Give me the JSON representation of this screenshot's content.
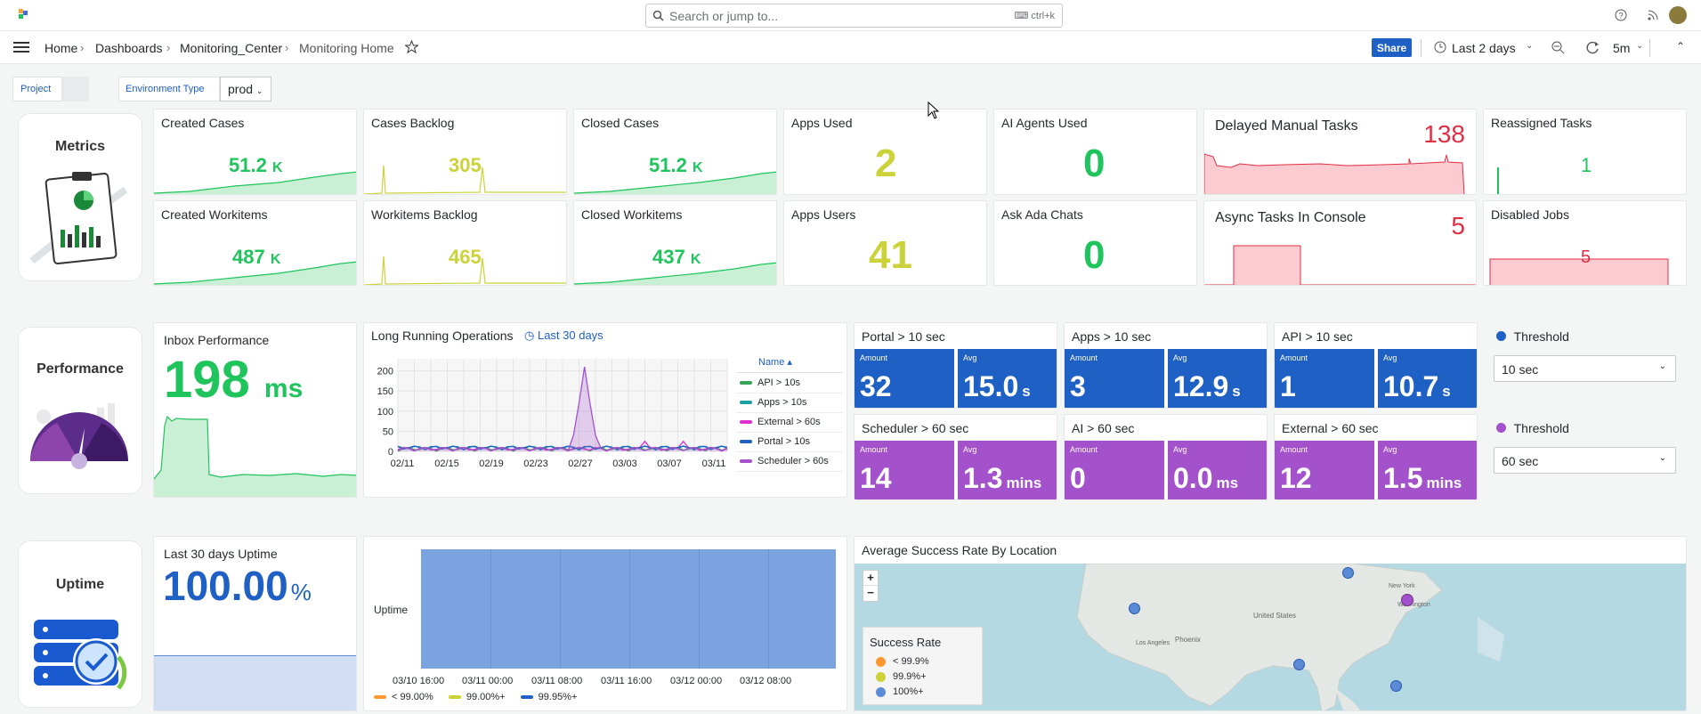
{
  "app": {
    "logo": "grafana-logo",
    "breadcrumb": [
      "Home",
      "Dashboards",
      "Monitoring_Center",
      "Monitoring Home"
    ]
  },
  "search": {
    "placeholder": "Search or jump to...",
    "shortcut": "ctrl+k"
  },
  "toolbar": {
    "share_label": "Share",
    "time_range": "Last 2 days",
    "refresh": "5m"
  },
  "variables": {
    "project_label": "Project",
    "env_label": "Environment Type",
    "env_value": "prod"
  },
  "rows": {
    "metrics": "Metrics",
    "performance": "Performance",
    "uptime": "Uptime"
  },
  "metrics": {
    "created_cases": {
      "title": "Created Cases",
      "value": "51.2",
      "unit": "K"
    },
    "cases_backlog": {
      "title": "Cases Backlog",
      "value": "305"
    },
    "closed_cases": {
      "title": "Closed Cases",
      "value": "51.2",
      "unit": "K"
    },
    "apps_used": {
      "title": "Apps Used",
      "value": "2"
    },
    "ai_agents": {
      "title": "AI Agents Used",
      "value": "0"
    },
    "delayed_tasks": {
      "title": "Delayed Manual Tasks",
      "value": "138"
    },
    "reassigned": {
      "title": "Reassigned Tasks",
      "value": "1"
    },
    "created_workitems": {
      "title": "Created Workitems",
      "value": "487",
      "unit": "K"
    },
    "workitems_backlog": {
      "title": "Workitems Backlog",
      "value": "465"
    },
    "closed_workitems": {
      "title": "Closed Workitems",
      "value": "437",
      "unit": "K"
    },
    "apps_users": {
      "title": "Apps Users",
      "value": "41"
    },
    "ask_ada": {
      "title": "Ask Ada Chats",
      "value": "0"
    },
    "async_tasks": {
      "title": "Async Tasks In Console",
      "value": "5"
    },
    "disabled_jobs": {
      "title": "Disabled Jobs",
      "value": "5"
    }
  },
  "performance": {
    "inbox": {
      "title": "Inbox Performance",
      "value": "198",
      "unit": "ms"
    },
    "lro": {
      "title": "Long Running Operations",
      "range": "Last 30 days",
      "legend_header": "Name"
    },
    "boxes": [
      {
        "title": "Portal > 10 sec",
        "amount": "32",
        "avg": "15.0",
        "avg_unit": "s"
      },
      {
        "title": "Apps > 10 sec",
        "amount": "3",
        "avg": "12.9",
        "avg_unit": "s"
      },
      {
        "title": "API > 10 sec",
        "amount": "1",
        "avg": "10.7",
        "avg_unit": "s"
      },
      {
        "title": "Scheduler > 60 sec",
        "amount": "14",
        "avg": "1.3",
        "avg_unit": "mins"
      },
      {
        "title": "AI > 60 sec",
        "amount": "0",
        "avg": "0.0",
        "avg_unit": "ms"
      },
      {
        "title": "External > 60 sec",
        "amount": "12",
        "avg": "1.5",
        "avg_unit": "mins"
      }
    ],
    "amount_label": "Amount",
    "avg_label": "Avg",
    "threshold1": {
      "label": "Threshold",
      "value": "10 sec",
      "color": "#1f60c4"
    },
    "threshold2": {
      "label": "Threshold",
      "value": "60 sec",
      "color": "#a352cc"
    }
  },
  "uptime": {
    "last30": {
      "title": "Last 30 days Uptime",
      "value": "100.00",
      "unit": "%"
    },
    "timeline": {
      "row_label": "Uptime",
      "legend": [
        "< 99.00%",
        "99.00%+",
        "99.95%+"
      ]
    },
    "map": {
      "title": "Average Success Rate By Location",
      "legend_title": "Success Rate",
      "legend": [
        "< 99.9%",
        "99.9%+",
        "100%+"
      ],
      "places": [
        "United States",
        "Phoenix",
        "Los Angeles",
        "New York",
        "Washington"
      ],
      "zoom_in": "+",
      "zoom_out": "−"
    }
  },
  "chart_data": {
    "type": "line",
    "title": "Long Running Operations",
    "categories": [
      "02/11",
      "02/15",
      "02/19",
      "02/23",
      "02/27",
      "03/03",
      "03/07",
      "03/11"
    ],
    "yticks": [
      "200",
      "150",
      "100",
      "50",
      "0"
    ],
    "ylim": [
      0,
      230
    ],
    "series": [
      {
        "name": "API > 10s",
        "color": "#37a354"
      },
      {
        "name": "Apps > 10s",
        "color": "#1aa0a0"
      },
      {
        "name": "External > 60s",
        "color": "#e02fce"
      },
      {
        "name": "Portal > 10s",
        "color": "#1f60c4"
      },
      {
        "name": "Scheduler > 60s",
        "color": "#a352cc",
        "peak": 210
      }
    ]
  },
  "colors": {
    "green": "#1fc45c",
    "yellow": "#cbd23a",
    "red": "#e02f44",
    "blue": "#1f60c4",
    "purple": "#a352cc"
  }
}
